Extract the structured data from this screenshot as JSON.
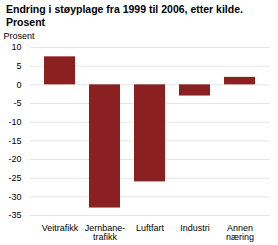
{
  "chart_data": {
    "type": "bar",
    "title": "Endring i støyplage fra 1999 til 2006, etter kilde.",
    "subtitle": "Prosent",
    "ylabel": "Prosent",
    "categories": [
      "Veitrafikk",
      "Jernbane-\ntrafikk",
      "Luftfart",
      "Industri",
      "Annen\nnæring"
    ],
    "values": [
      7.5,
      -33.0,
      -26.0,
      -3.0,
      2.0
    ],
    "color": "#8B2020",
    "ylim": [
      -35,
      10
    ],
    "yticks": [
      10,
      5,
      0,
      -5,
      -10,
      -15,
      -20,
      -25,
      -30,
      -35
    ],
    "grid": true
  }
}
